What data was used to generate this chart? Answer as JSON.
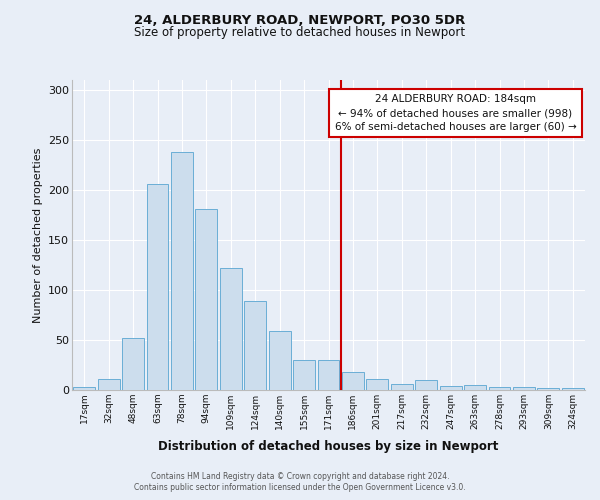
{
  "title": "24, ALDERBURY ROAD, NEWPORT, PO30 5DR",
  "subtitle": "Size of property relative to detached houses in Newport",
  "xlabel": "Distribution of detached houses by size in Newport",
  "ylabel": "Number of detached properties",
  "categories": [
    "17sqm",
    "32sqm",
    "48sqm",
    "63sqm",
    "78sqm",
    "94sqm",
    "109sqm",
    "124sqm",
    "140sqm",
    "155sqm",
    "171sqm",
    "186sqm",
    "201sqm",
    "217sqm",
    "232sqm",
    "247sqm",
    "263sqm",
    "278sqm",
    "293sqm",
    "309sqm",
    "324sqm"
  ],
  "values": [
    3,
    11,
    52,
    206,
    238,
    181,
    122,
    89,
    59,
    30,
    30,
    18,
    11,
    6,
    10,
    4,
    5,
    3,
    3,
    2,
    2
  ],
  "bar_color": "#ccdded",
  "bar_edge_color": "#6aaed6",
  "vline_color": "#cc0000",
  "annotation_title": "24 ALDERBURY ROAD: 184sqm",
  "annotation_line1": "← 94% of detached houses are smaller (998)",
  "annotation_line2": "6% of semi-detached houses are larger (60) →",
  "footer1": "Contains HM Land Registry data © Crown copyright and database right 2024.",
  "footer2": "Contains public sector information licensed under the Open Government Licence v3.0.",
  "ylim": [
    0,
    310
  ],
  "fig_bg_color": "#e8eef7",
  "plot_bg_color": "#e8eef7",
  "grid_color": "#ffffff"
}
